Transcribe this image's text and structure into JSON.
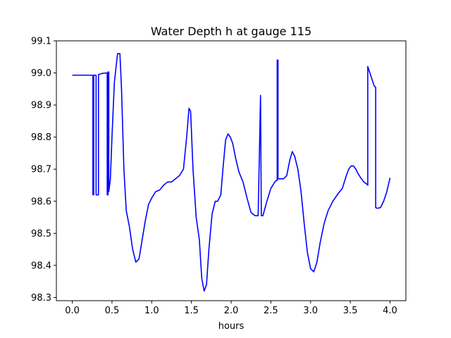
{
  "chart_data": {
    "type": "line",
    "title": "Water Depth h at gauge 115",
    "xlabel": "hours",
    "ylabel": "",
    "xlim": [
      -0.2,
      4.2
    ],
    "ylim": [
      98.29,
      99.1
    ],
    "xticks": [
      0.0,
      0.5,
      1.0,
      1.5,
      2.0,
      2.5,
      3.0,
      3.5,
      4.0
    ],
    "xtick_labels": [
      "0.0",
      "0.5",
      "1.0",
      "1.5",
      "2.0",
      "2.5",
      "3.0",
      "3.5",
      "4.0"
    ],
    "yticks": [
      98.3,
      98.4,
      98.5,
      98.6,
      98.7,
      98.8,
      98.9,
      99.0,
      99.1
    ],
    "ytick_labels": [
      "98.3",
      "98.4",
      "98.5",
      "98.6",
      "98.7",
      "98.8",
      "98.9",
      "99.0",
      "99.1"
    ],
    "grid": false,
    "legend": "none",
    "series": [
      {
        "color": "#0000ff",
        "x": [
          0.0,
          0.26,
          0.26,
          0.27,
          0.27,
          0.3,
          0.3,
          0.33,
          0.33,
          0.37,
          0.39,
          0.44,
          0.44,
          0.45,
          0.45,
          0.46,
          0.46,
          0.48,
          0.5,
          0.53,
          0.57,
          0.6,
          0.62,
          0.65,
          0.68,
          0.72,
          0.76,
          0.8,
          0.84,
          0.88,
          0.92,
          0.96,
          1.0,
          1.05,
          1.1,
          1.15,
          1.2,
          1.25,
          1.3,
          1.35,
          1.4,
          1.44,
          1.47,
          1.49,
          1.52,
          1.56,
          1.6,
          1.63,
          1.66,
          1.69,
          1.72,
          1.76,
          1.8,
          1.83,
          1.87,
          1.9,
          1.93,
          1.96,
          1.99,
          2.02,
          2.06,
          2.1,
          2.15,
          2.2,
          2.25,
          2.3,
          2.34,
          2.37,
          2.37,
          2.38,
          2.38,
          2.4,
          2.45,
          2.5,
          2.55,
          2.57,
          2.58,
          2.58,
          2.59,
          2.59,
          2.62,
          2.66,
          2.7,
          2.74,
          2.77,
          2.8,
          2.84,
          2.88,
          2.92,
          2.96,
          3.0,
          3.04,
          3.08,
          3.12,
          3.17,
          3.22,
          3.28,
          3.35,
          3.4,
          3.45,
          3.48,
          3.51,
          3.54,
          3.57,
          3.6,
          3.64,
          3.67,
          3.7,
          3.72,
          3.72,
          3.76,
          3.8,
          3.82,
          3.82,
          3.84,
          3.88,
          3.92,
          3.96,
          4.0
        ],
        "values": [
          98.993,
          98.993,
          98.62,
          98.62,
          98.993,
          98.993,
          98.62,
          98.62,
          98.995,
          98.998,
          98.999,
          99.0,
          98.62,
          98.62,
          99.003,
          99.003,
          98.63,
          98.67,
          98.8,
          98.97,
          99.06,
          99.06,
          98.95,
          98.7,
          98.57,
          98.52,
          98.45,
          98.41,
          98.42,
          98.48,
          98.54,
          98.59,
          98.61,
          98.63,
          98.635,
          98.65,
          98.66,
          98.66,
          98.67,
          98.68,
          98.7,
          98.8,
          98.89,
          98.88,
          98.7,
          98.55,
          98.48,
          98.36,
          98.32,
          98.34,
          98.45,
          98.56,
          98.6,
          98.6,
          98.62,
          98.71,
          98.79,
          98.81,
          98.8,
          98.78,
          98.73,
          98.69,
          98.66,
          98.61,
          98.565,
          98.555,
          98.555,
          98.93,
          98.93,
          98.555,
          98.555,
          98.555,
          98.6,
          98.64,
          98.66,
          98.665,
          98.665,
          99.04,
          99.04,
          98.67,
          98.67,
          98.67,
          98.68,
          98.73,
          98.755,
          98.74,
          98.7,
          98.63,
          98.53,
          98.44,
          98.39,
          98.38,
          98.41,
          98.47,
          98.53,
          98.57,
          98.6,
          98.625,
          98.64,
          98.68,
          98.7,
          98.71,
          98.71,
          98.7,
          98.685,
          98.67,
          98.66,
          98.655,
          98.65,
          99.02,
          98.99,
          98.96,
          98.955,
          98.58,
          98.578,
          98.58,
          98.6,
          98.63,
          98.673
        ]
      }
    ]
  }
}
